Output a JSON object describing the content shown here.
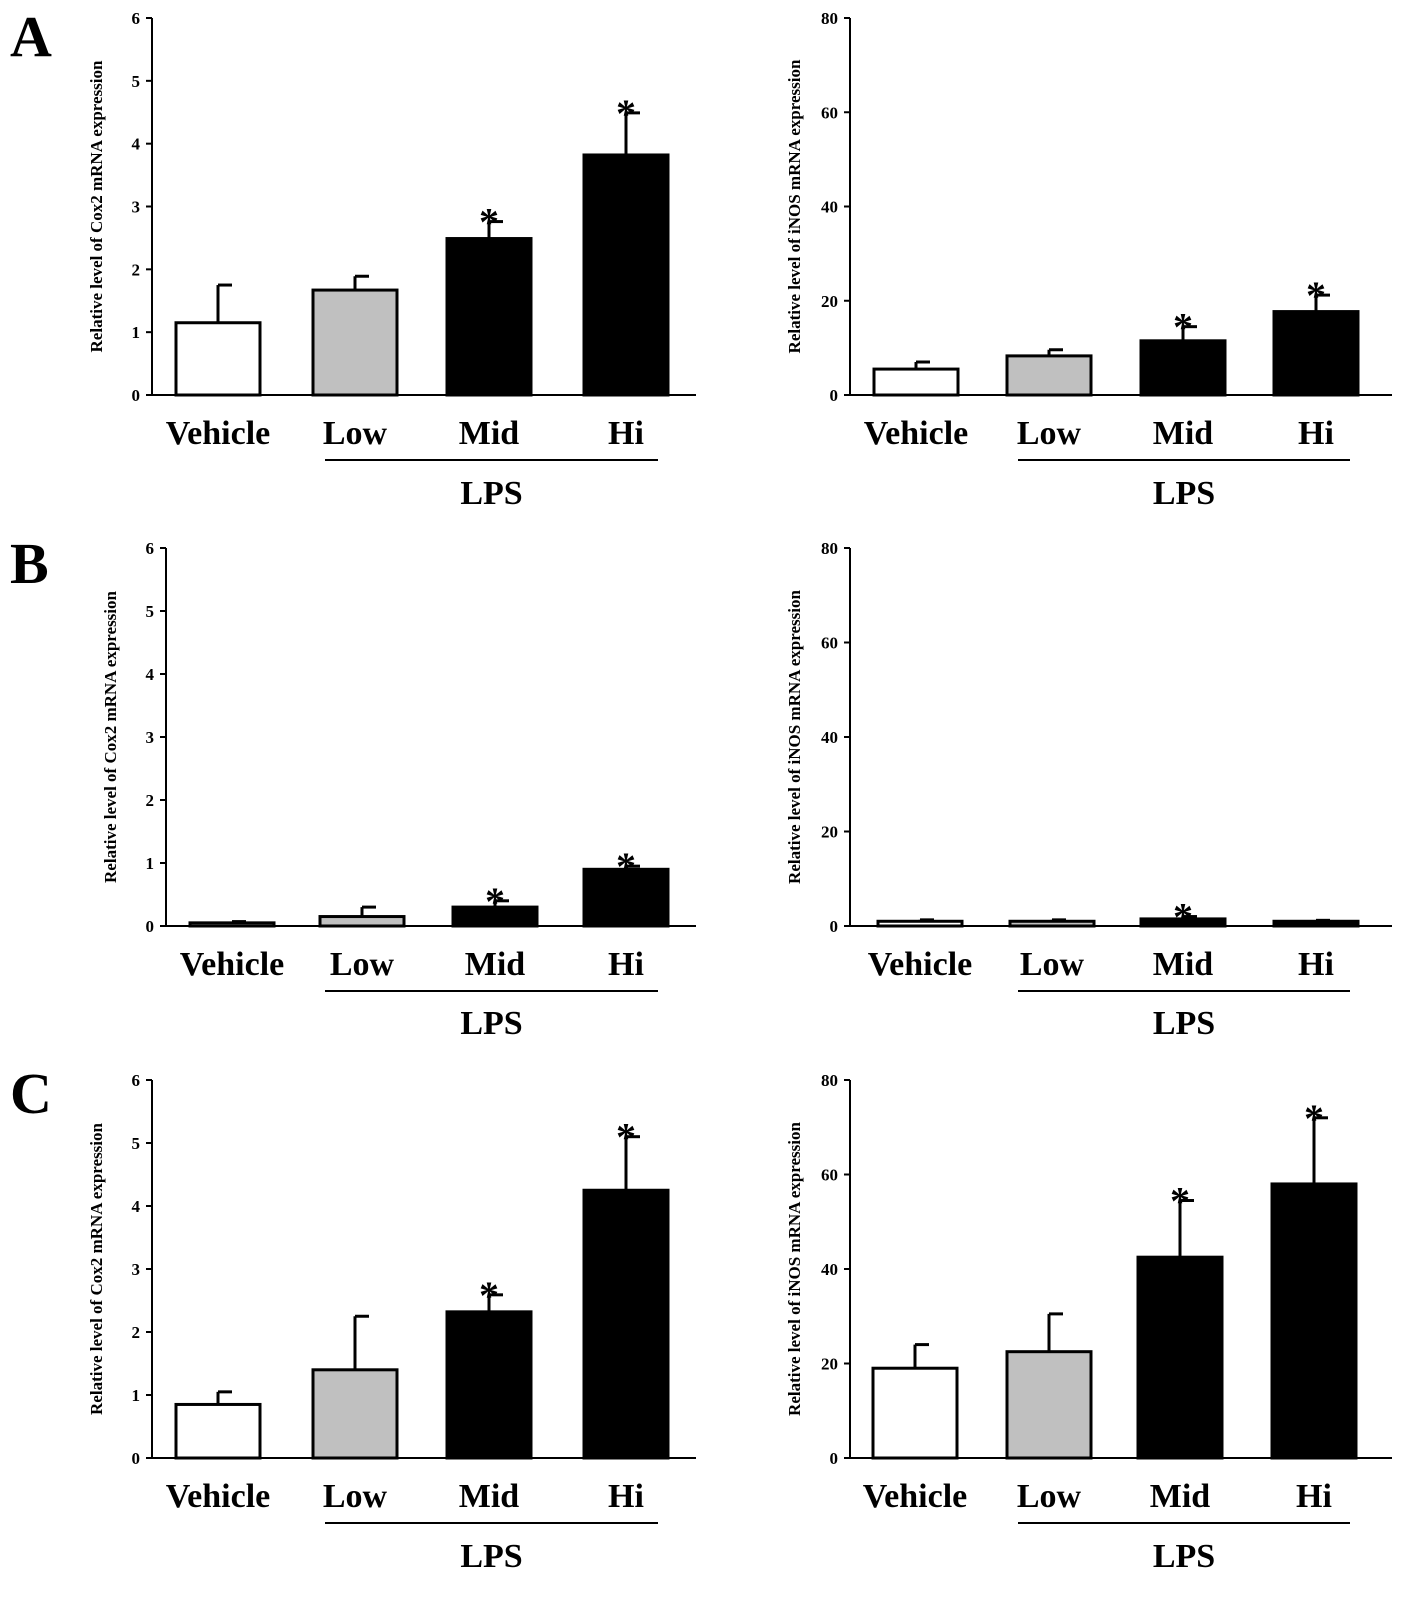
{
  "panel_labels": [
    "A",
    "B",
    "C"
  ],
  "colors": {
    "vehicle": "#ffffff",
    "low": "#c0c0c0",
    "mid": "#000000",
    "hi": "#000000",
    "stroke": "#000000"
  },
  "chart_data": [
    {
      "type": "bar",
      "panel": "A",
      "categories": [
        "Vehicle",
        "Low",
        "Mid",
        "Hi"
      ],
      "group_label": "LPS",
      "ylabel": "Relative level of  Cox2 mRNA expression",
      "ylim": [
        0,
        6
      ],
      "yticks": [
        0,
        1,
        2,
        3,
        4,
        5,
        6
      ],
      "values": [
        1.15,
        1.67,
        2.49,
        3.82
      ],
      "errors": [
        0.6,
        0.22,
        0.27,
        0.67
      ],
      "significant": [
        false,
        false,
        true,
        true
      ],
      "significance_mark": "*"
    },
    {
      "type": "bar",
      "panel": "A",
      "categories": [
        "Vehicle",
        "Low",
        "Mid",
        "Hi"
      ],
      "group_label": "LPS",
      "ylabel": "Relative level of  iNOS mRNA expression",
      "ylim": [
        0,
        80
      ],
      "yticks": [
        0,
        20,
        40,
        60,
        80
      ],
      "values": [
        5.5,
        8.3,
        11.5,
        17.7
      ],
      "errors": [
        1.5,
        1.3,
        3.0,
        3.5
      ],
      "significant": [
        false,
        false,
        true,
        true
      ],
      "significance_mark": "*"
    },
    {
      "type": "bar",
      "panel": "B",
      "categories": [
        "Vehicle",
        "Low",
        "Mid",
        "Hi"
      ],
      "group_label": "LPS",
      "ylabel": "Relative level of  Cox2 mRNA expression",
      "ylim": [
        0,
        6
      ],
      "yticks": [
        0,
        1,
        2,
        3,
        4,
        5,
        6
      ],
      "values": [
        0.05,
        0.15,
        0.3,
        0.9
      ],
      "errors": [
        0.02,
        0.15,
        0.1,
        0.05
      ],
      "significant": [
        false,
        false,
        true,
        true
      ],
      "significance_mark": "*"
    },
    {
      "type": "bar",
      "panel": "B",
      "categories": [
        "Vehicle",
        "Low",
        "Mid",
        "Hi"
      ],
      "group_label": "LPS",
      "ylabel": "Relative level of  iNOS mRNA expression",
      "ylim": [
        0,
        80
      ],
      "yticks": [
        0,
        20,
        40,
        60,
        80
      ],
      "values": [
        1.0,
        1.0,
        1.5,
        1.0
      ],
      "errors": [
        0.3,
        0.3,
        0.5,
        0.2
      ],
      "significant": [
        false,
        false,
        true,
        false
      ],
      "significance_mark": "*"
    },
    {
      "type": "bar",
      "panel": "C",
      "categories": [
        "Vehicle",
        "Low",
        "Mid",
        "Hi"
      ],
      "group_label": "LPS",
      "ylabel": "Relative level of  Cox2 mRNA expression",
      "ylim": [
        0,
        6
      ],
      "yticks": [
        0,
        1,
        2,
        3,
        4,
        5,
        6
      ],
      "values": [
        0.85,
        1.4,
        2.32,
        4.25
      ],
      "errors": [
        0.2,
        0.85,
        0.27,
        0.85
      ],
      "significant": [
        false,
        false,
        true,
        true
      ],
      "significance_mark": "*"
    },
    {
      "type": "bar",
      "panel": "C",
      "categories": [
        "Vehicle",
        "Low",
        "Mid",
        "Hi"
      ],
      "group_label": "LPS",
      "ylabel": "Relative level of  iNOS mRNA expression",
      "ylim": [
        0,
        80
      ],
      "yticks": [
        0,
        20,
        40,
        60,
        80
      ],
      "values": [
        19,
        22.5,
        42.5,
        58
      ],
      "errors": [
        5,
        8,
        12,
        14
      ],
      "significant": [
        false,
        false,
        true,
        true
      ],
      "significance_mark": "*"
    }
  ]
}
